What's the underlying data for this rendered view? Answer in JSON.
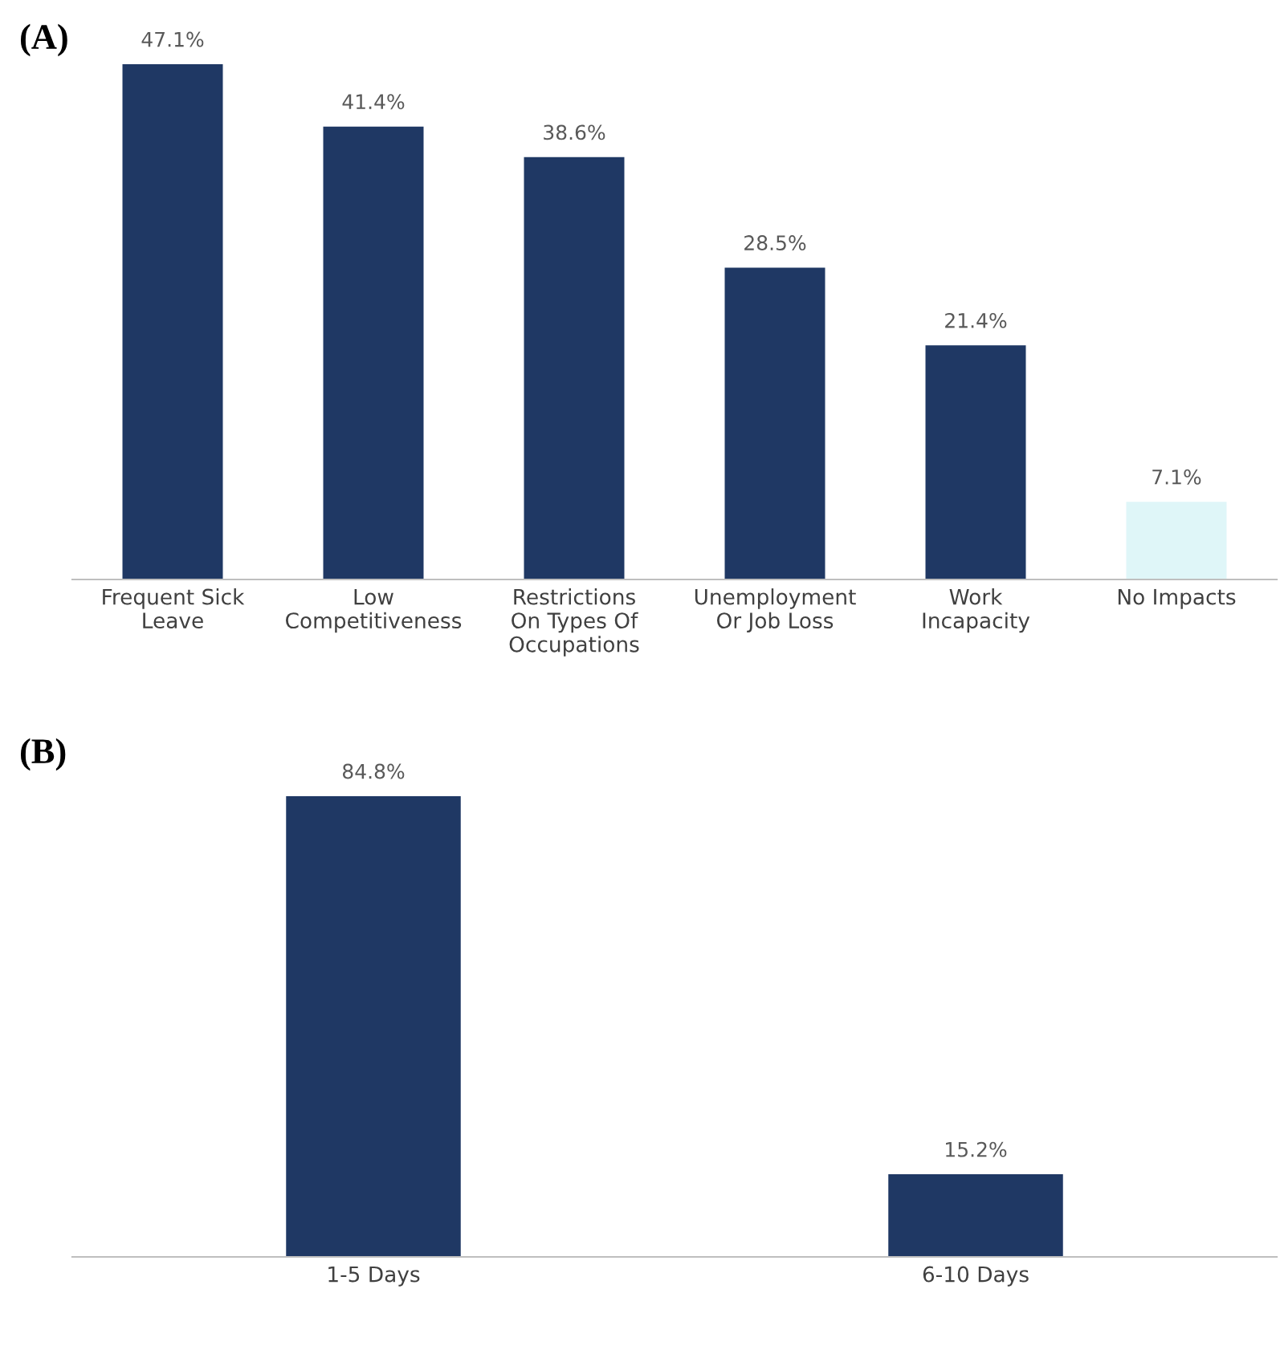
{
  "chart_data": [
    {
      "type": "bar",
      "title": "(A)",
      "categories": [
        "Frequent Sick Leave",
        "Low Competitiveness",
        "Restrictions On Types Of Occupations",
        "Unemployment Or Job Loss",
        "Work Incapacity",
        "No Impacts"
      ],
      "values": [
        47.1,
        41.4,
        38.6,
        28.5,
        21.4,
        7.1
      ],
      "colors": [
        "#1f3864",
        "#1f3864",
        "#1f3864",
        "#1f3864",
        "#1f3864",
        "#dff6f8"
      ],
      "value_labels": [
        "47.1%",
        "41.4%",
        "38.6%",
        "28.5%",
        "21.4%",
        "7.1%"
      ],
      "grid": false,
      "legend": false
    },
    {
      "type": "bar",
      "title": "(B)",
      "categories": [
        "1-5 Days",
        "6-10 Days"
      ],
      "values": [
        84.8,
        15.2
      ],
      "color": "#1f3864",
      "value_labels": [
        "84.8%",
        "15.2%"
      ],
      "grid": false,
      "legend": false
    }
  ]
}
